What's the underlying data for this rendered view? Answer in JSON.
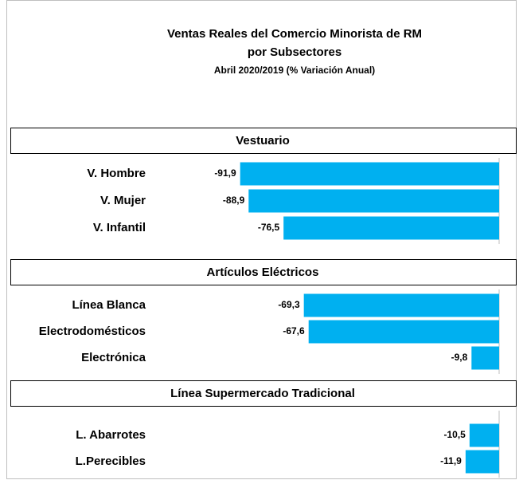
{
  "chart_data": {
    "type": "bar",
    "title": [
      "Ventas Reales del Comercio Minorista de RM",
      "por Subsectores"
    ],
    "subtitle": "Abril 2020/2019 (% Variación Anual)",
    "color": "#00b0f0",
    "xlim": [
      -100,
      0
    ],
    "groups": [
      {
        "name": "Vestuario",
        "categories": [
          "V. Hombre",
          "V. Mujer",
          "V. Infantil"
        ],
        "values": [
          -91.9,
          -88.9,
          -76.5
        ],
        "value_labels": [
          "-91,9",
          "-88,9",
          "-76,5"
        ]
      },
      {
        "name": "Artículos Eléctricos",
        "categories": [
          "Línea Blanca",
          "Electrodomésticos",
          "Electrónica"
        ],
        "values": [
          -69.3,
          -67.6,
          -9.8
        ],
        "value_labels": [
          "-69,3",
          "-67,6",
          "-9,8"
        ]
      },
      {
        "name": "Línea Supermercado Tradicional",
        "categories": [
          "L. Abarrotes",
          "L.Perecibles"
        ],
        "values": [
          -10.5,
          -11.9
        ],
        "value_labels": [
          "-10,5",
          "-11,9"
        ]
      }
    ]
  }
}
